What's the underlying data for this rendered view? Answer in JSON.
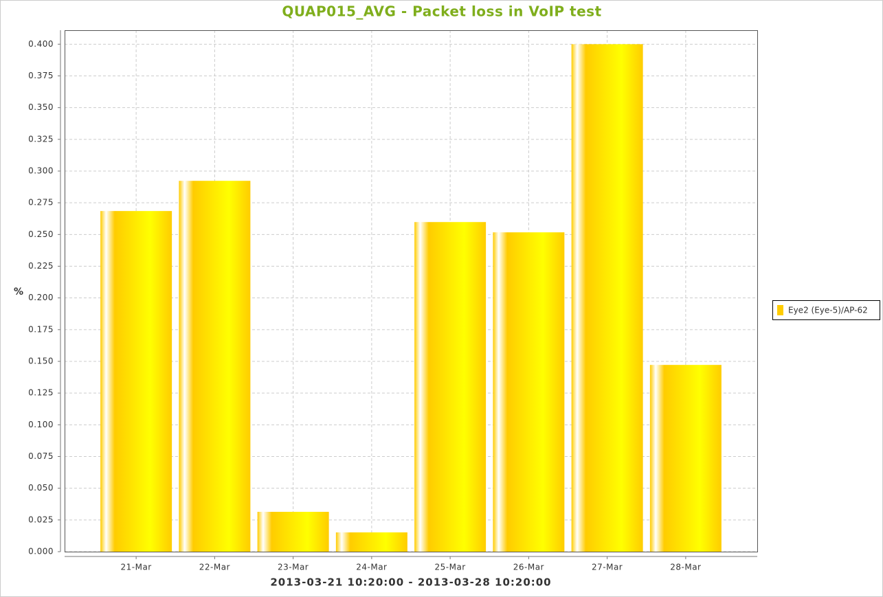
{
  "chart_data": {
    "type": "bar",
    "title": "QUAP015_AVG - Packet loss in VoIP test",
    "x_label": "2013-03-21 10:20:00 - 2013-03-28 10:20:00",
    "y_label": "%",
    "categories": [
      "21-Mar",
      "22-Mar",
      "23-Mar",
      "24-Mar",
      "25-Mar",
      "26-Mar",
      "27-Mar",
      "28-Mar"
    ],
    "series": [
      {
        "name": "Eye2 (Eye-5)/AP-62",
        "color": "#ffcc00",
        "values": [
          0.2685,
          0.2923,
          0.0314,
          0.0152,
          0.2598,
          0.2517,
          0.4,
          0.1472
        ]
      }
    ],
    "ylim": [
      0,
      0.411
    ],
    "yticks": [
      {
        "value": 0,
        "label": "0.000"
      },
      0.025,
      {
        "value": 0.05,
        "label": "0.050"
      },
      0.075,
      {
        "value": 0.1,
        "label": "0.100"
      },
      0.125,
      {
        "value": 0.15,
        "label": "0.150"
      },
      0.175,
      {
        "value": 0.2,
        "label": "0.200"
      },
      0.225,
      {
        "value": 0.25,
        "label": "0.250"
      },
      0.275,
      {
        "value": 0.3,
        "label": "0.300"
      },
      0.325,
      {
        "value": 0.35,
        "label": "0.350"
      },
      0.375,
      {
        "value": 0.4,
        "label": "0.400"
      }
    ],
    "grid": true,
    "legend": "right"
  }
}
